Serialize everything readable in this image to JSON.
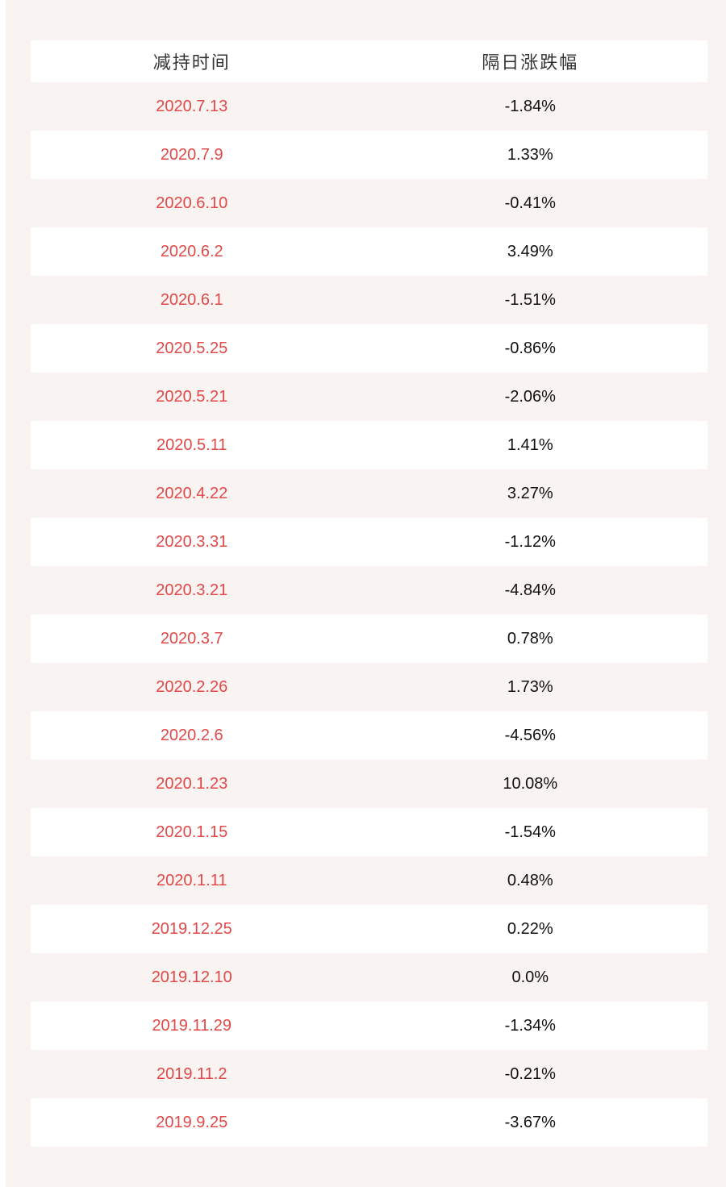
{
  "chart_data": {
    "type": "table",
    "columns": [
      "减持时间",
      "隔日涨跌幅"
    ],
    "rows": [
      {
        "date": "2020.7.13",
        "change": "-1.84%",
        "change_pct": -1.84
      },
      {
        "date": "2020.7.9",
        "change": "1.33%",
        "change_pct": 1.33
      },
      {
        "date": "2020.6.10",
        "change": "-0.41%",
        "change_pct": -0.41
      },
      {
        "date": "2020.6.2",
        "change": "3.49%",
        "change_pct": 3.49
      },
      {
        "date": "2020.6.1",
        "change": "-1.51%",
        "change_pct": -1.51
      },
      {
        "date": "2020.5.25",
        "change": "-0.86%",
        "change_pct": -0.86
      },
      {
        "date": "2020.5.21",
        "change": "-2.06%",
        "change_pct": -2.06
      },
      {
        "date": "2020.5.11",
        "change": "1.41%",
        "change_pct": 1.41
      },
      {
        "date": "2020.4.22",
        "change": "3.27%",
        "change_pct": 3.27
      },
      {
        "date": "2020.3.31",
        "change": "-1.12%",
        "change_pct": -1.12
      },
      {
        "date": "2020.3.21",
        "change": "-4.84%",
        "change_pct": -4.84
      },
      {
        "date": "2020.3.7",
        "change": "0.78%",
        "change_pct": 0.78
      },
      {
        "date": "2020.2.26",
        "change": "1.73%",
        "change_pct": 1.73
      },
      {
        "date": "2020.2.6",
        "change": "-4.56%",
        "change_pct": -4.56
      },
      {
        "date": "2020.1.23",
        "change": "10.08%",
        "change_pct": 10.08
      },
      {
        "date": "2020.1.15",
        "change": "-1.54%",
        "change_pct": -1.54
      },
      {
        "date": "2020.1.11",
        "change": "0.48%",
        "change_pct": 0.48
      },
      {
        "date": "2019.12.25",
        "change": "0.22%",
        "change_pct": 0.22
      },
      {
        "date": "2019.12.10",
        "change": "0.0%",
        "change_pct": 0.0
      },
      {
        "date": "2019.11.29",
        "change": "-1.34%",
        "change_pct": -1.34
      },
      {
        "date": "2019.11.2",
        "change": "-0.21%",
        "change_pct": -0.21
      },
      {
        "date": "2019.9.25",
        "change": "-3.67%",
        "change_pct": -3.67
      }
    ]
  },
  "colors": {
    "page_background": "#f9f3f2",
    "row_white": "#ffffff",
    "date_red": "#e24848",
    "value_black": "#111111",
    "header_gray": "#333333"
  }
}
